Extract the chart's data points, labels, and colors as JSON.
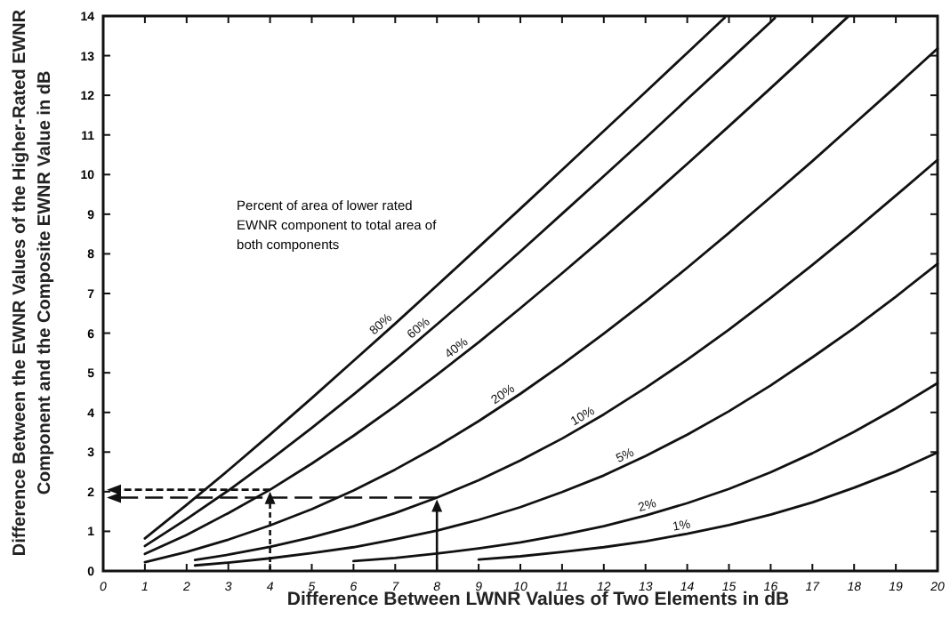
{
  "chart_data": {
    "type": "line",
    "xlabel": "Difference Between LWNR Values of Two Elements in dB",
    "ylabel": "Difference Between the EWNR Values of the Higher-Rated EWNR Component and the Composite EWNR Value in dB",
    "xlim": [
      0,
      20
    ],
    "ylim": [
      0,
      14
    ],
    "xticks": [
      0,
      1,
      2,
      3,
      4,
      5,
      6,
      7,
      8,
      9,
      10,
      11,
      12,
      13,
      14,
      15,
      16,
      17,
      18,
      19,
      20
    ],
    "yticks": [
      0,
      1,
      2,
      3,
      4,
      5,
      6,
      7,
      8,
      9,
      10,
      11,
      12,
      13,
      14
    ],
    "annotations": [
      "Percent of area of lower rated EWNR component to total area of both components"
    ],
    "series": [
      {
        "name": "80%",
        "color": "#111111",
        "x": [
          1,
          2,
          3,
          4,
          5,
          6,
          7,
          8,
          9,
          10,
          11,
          12,
          13,
          14,
          14.9
        ],
        "values": [
          0.82,
          1.67,
          2.54,
          3.44,
          4.36,
          5.3,
          6.24,
          7.2,
          8.17,
          9.14,
          10.12,
          11.1,
          12.08,
          13.07,
          13.96
        ]
      },
      {
        "name": "60%",
        "color": "#111111",
        "x": [
          1,
          2,
          3,
          4,
          5,
          6,
          7,
          8,
          9,
          10,
          11,
          12,
          13,
          14,
          15,
          16,
          16.1
        ],
        "values": [
          0.63,
          1.31,
          2.03,
          2.8,
          3.61,
          4.45,
          5.32,
          6.22,
          7.13,
          8.06,
          9.01,
          9.96,
          10.92,
          11.9,
          12.87,
          13.85,
          13.95
        ]
      },
      {
        "name": "40%",
        "color": "#111111",
        "x": [
          1,
          2,
          3,
          4,
          5,
          6,
          7,
          8,
          9,
          10,
          11,
          12,
          13,
          14,
          15,
          16,
          17,
          17.85
        ],
        "values": [
          0.43,
          0.91,
          1.46,
          2.05,
          2.71,
          3.41,
          4.16,
          4.95,
          5.77,
          6.63,
          7.51,
          8.41,
          9.33,
          10.27,
          11.22,
          12.18,
          13.15,
          13.98
        ]
      },
      {
        "name": "20%",
        "color": "#111111",
        "x": [
          1,
          2,
          3,
          4,
          5,
          6,
          7,
          8,
          9,
          10,
          11,
          12,
          13,
          14,
          15,
          16,
          17,
          18,
          19,
          20
        ],
        "values": [
          0.22,
          0.48,
          0.79,
          1.15,
          1.56,
          2.03,
          2.56,
          3.14,
          3.78,
          4.47,
          5.21,
          5.99,
          6.8,
          7.65,
          8.53,
          9.43,
          10.34,
          11.28,
          12.22,
          13.18
        ]
      },
      {
        "name": "10%",
        "color": "#111111",
        "x": [
          2.2,
          3,
          4,
          5,
          6,
          7,
          8,
          9,
          10,
          11,
          12,
          13,
          14,
          15,
          16,
          17,
          18,
          19,
          20
        ],
        "values": [
          0.28,
          0.41,
          0.61,
          0.85,
          1.13,
          1.46,
          1.85,
          2.29,
          2.79,
          3.34,
          3.95,
          4.62,
          5.33,
          6.09,
          6.89,
          7.72,
          8.58,
          9.47,
          10.37
        ]
      },
      {
        "name": "5%",
        "color": "#111111",
        "x": [
          2.2,
          3,
          4,
          5,
          6,
          7,
          8,
          9,
          10,
          11,
          12,
          13,
          14,
          15,
          16,
          17,
          18,
          19,
          20
        ],
        "values": [
          0.14,
          0.21,
          0.32,
          0.45,
          0.6,
          0.8,
          1.02,
          1.29,
          1.61,
          1.99,
          2.41,
          2.9,
          3.44,
          4.03,
          4.68,
          5.39,
          6.13,
          6.92,
          7.75
        ]
      },
      {
        "name": "2%",
        "color": "#111111",
        "x": [
          6,
          7,
          8,
          9,
          10,
          11,
          12,
          13,
          14,
          15,
          16,
          17,
          18,
          19,
          20
        ],
        "values": [
          0.25,
          0.33,
          0.44,
          0.57,
          0.72,
          0.91,
          1.13,
          1.4,
          1.71,
          2.07,
          2.49,
          2.97,
          3.51,
          4.1,
          4.74
        ]
      },
      {
        "name": "1%",
        "color": "#111111",
        "x": [
          9,
          10,
          11,
          12,
          13,
          14,
          15,
          16,
          17,
          18,
          19,
          20
        ],
        "values": [
          0.29,
          0.37,
          0.48,
          0.6,
          0.75,
          0.94,
          1.16,
          1.42,
          1.73,
          2.1,
          2.51,
          2.99
        ]
      }
    ]
  }
}
